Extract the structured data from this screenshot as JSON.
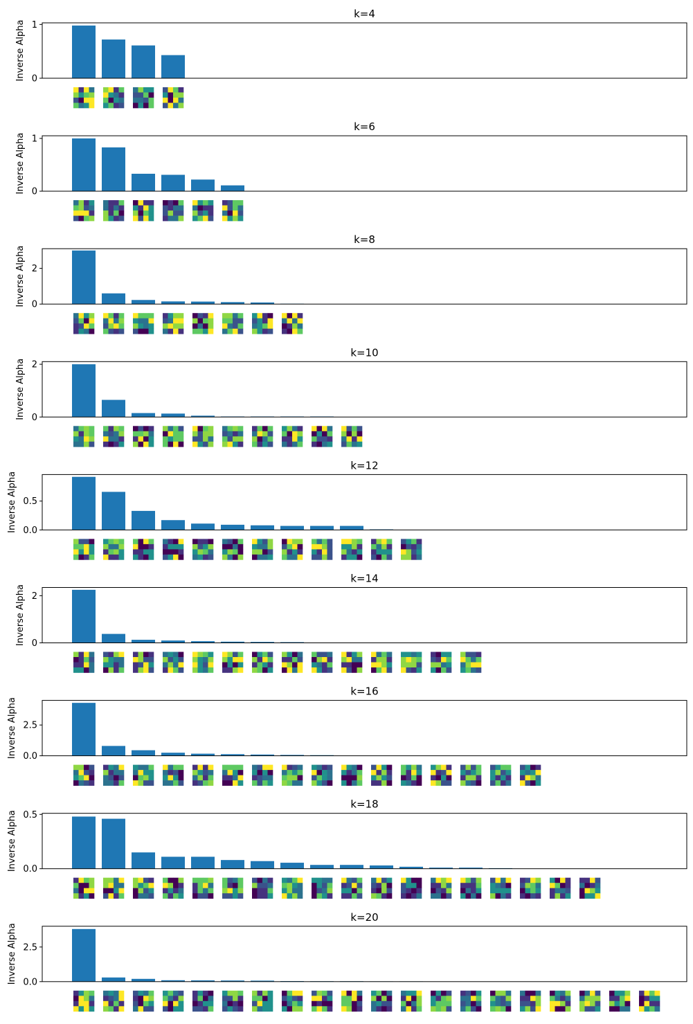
{
  "figure": {
    "ylabel": "Inverse Alpha",
    "bar_color": "#1f77b4",
    "colormap": "viridis"
  },
  "chart_data": [
    {
      "type": "bar",
      "title": "k=4",
      "ylabel": "Inverse Alpha",
      "ylim": [
        0,
        1.03
      ],
      "yticks": [
        0,
        1
      ],
      "ytick_labels": [
        "0",
        "1"
      ],
      "values": [
        0.98,
        0.72,
        0.61,
        0.43
      ]
    },
    {
      "type": "bar",
      "title": "k=6",
      "ylabel": "Inverse Alpha",
      "ylim": [
        0,
        1.05
      ],
      "yticks": [
        0,
        1
      ],
      "ytick_labels": [
        "0",
        "1"
      ],
      "values": [
        1.0,
        0.83,
        0.33,
        0.31,
        0.22,
        0.11
      ]
    },
    {
      "type": "bar",
      "title": "k=8",
      "ylabel": "Inverse Alpha",
      "ylim": [
        0,
        3.1
      ],
      "yticks": [
        0,
        2
      ],
      "ytick_labels": [
        "0",
        "2"
      ],
      "values": [
        3.0,
        0.6,
        0.23,
        0.15,
        0.14,
        0.11,
        0.09,
        0.02
      ]
    },
    {
      "type": "bar",
      "title": "k=10",
      "ylabel": "Inverse Alpha",
      "ylim": [
        0,
        2.1
      ],
      "yticks": [
        0,
        2
      ],
      "ytick_labels": [
        "0",
        "2"
      ],
      "values": [
        2.0,
        0.65,
        0.15,
        0.13,
        0.05,
        0.02,
        0.02,
        0.02,
        0.02,
        0.0
      ]
    },
    {
      "type": "bar",
      "title": "k=12",
      "ylabel": "Inverse Alpha",
      "ylim": [
        0,
        0.96
      ],
      "yticks": [
        0,
        0.5
      ],
      "ytick_labels": [
        "0.0",
        "0.5"
      ],
      "values": [
        0.92,
        0.66,
        0.33,
        0.17,
        0.11,
        0.09,
        0.08,
        0.07,
        0.07,
        0.07,
        0.01,
        0.0
      ]
    },
    {
      "type": "bar",
      "title": "k=14",
      "ylabel": "Inverse Alpha",
      "ylim": [
        0,
        2.35
      ],
      "yticks": [
        0,
        2
      ],
      "ytick_labels": [
        "0",
        "2"
      ],
      "values": [
        2.25,
        0.38,
        0.13,
        0.1,
        0.07,
        0.05,
        0.04,
        0.03,
        0.0,
        0.0,
        0.0,
        0.0,
        0.0,
        0.0
      ]
    },
    {
      "type": "bar",
      "title": "k=16",
      "ylabel": "Inverse Alpha",
      "ylim": [
        0,
        4.5
      ],
      "yticks": [
        0,
        2.5
      ],
      "ytick_labels": [
        "0.0",
        "2.5"
      ],
      "values": [
        4.3,
        0.8,
        0.45,
        0.25,
        0.17,
        0.13,
        0.1,
        0.07,
        0.05,
        0.0,
        0.0,
        0.0,
        0.0,
        0.0,
        0.0,
        0.0
      ]
    },
    {
      "type": "bar",
      "title": "k=18",
      "ylabel": "Inverse Alpha",
      "ylim": [
        0,
        0.51
      ],
      "yticks": [
        0,
        0.5
      ],
      "ytick_labels": [
        "0.0",
        "0.5"
      ],
      "values": [
        0.48,
        0.46,
        0.15,
        0.11,
        0.11,
        0.08,
        0.07,
        0.055,
        0.035,
        0.035,
        0.03,
        0.018,
        0.01,
        0.01,
        0.005,
        0.0,
        0.0,
        0.0
      ]
    },
    {
      "type": "bar",
      "title": "k=20",
      "ylabel": "Inverse Alpha",
      "ylim": [
        0,
        4.0
      ],
      "yticks": [
        0,
        2.5
      ],
      "ytick_labels": [
        "0.0",
        "2.5"
      ],
      "values": [
        3.8,
        0.3,
        0.2,
        0.1,
        0.09,
        0.08,
        0.07,
        0.04,
        0.03,
        0.03,
        0.02,
        0.02,
        0.01,
        0.01,
        0.01,
        0.0,
        0.0,
        0.0,
        0.0,
        0.0
      ]
    }
  ]
}
